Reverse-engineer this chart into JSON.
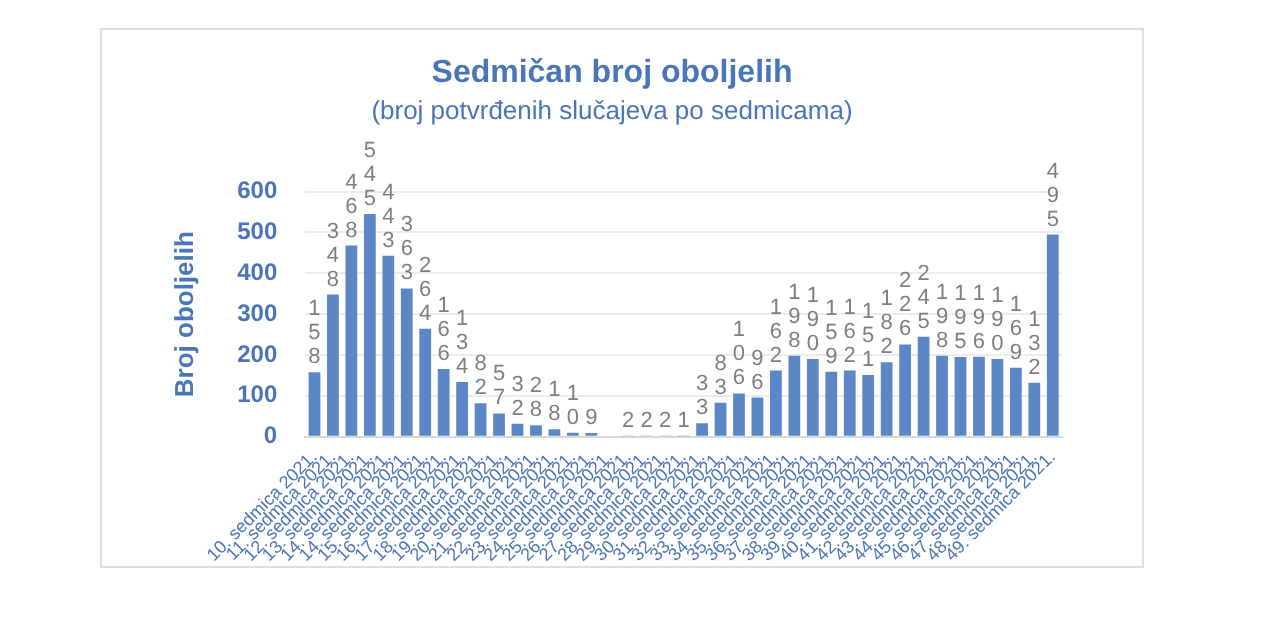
{
  "chart_data": {
    "type": "bar",
    "title": "Sedmičan broj oboljelih",
    "subtitle": "(broj potvrđenih slučajeva po sedmicama)",
    "ylabel": "Broj oboljelih",
    "categories": [
      "10. sedmica 2021.",
      "11. sedmica 2021.",
      "12. sedmica 2021.",
      "13. sedmica 2021.",
      "14. sedmica 2021.",
      "14. sedmica 2021.",
      "15. sedmica 2021.",
      "16. sedmica 2021.",
      "17. sedmica 2021.",
      "18. sedmica 2021.",
      "19. sedmica 2021.",
      "20. sedmica 2021.",
      "21. sedmica 2021.",
      "22. sedmica 2021.",
      "23. sedmica 2021.",
      "24. sedmica 2021.",
      "25. sedmica 2021.",
      "26. sedmica 2021.",
      "27. sedmica 2021.",
      "28. sedmica 2021.",
      "29. sedmica 2021.",
      "30. sedmica 2021.",
      "31. sedmica 2021.",
      "32. sedmica 2021.",
      "33. sedmica 2021.",
      "34. sedmica 2021.",
      "35. sedmica 2021.",
      "36. sedmica 2021.",
      "37. sedmica 2021.",
      "38. sedmica 2021.",
      "39. sedmica 2021.",
      "40. sedmica 2021.",
      "41. sedmica 2021.",
      "42. sedmica 2021.",
      "43. sedmica 2021.",
      "44. sedmica 2021.",
      "45. sedmica 2021.",
      "46. sedmica 2021.",
      "47. sedmica 2021.",
      "48. sedmica 2021.",
      "49. sedmica 2021."
    ],
    "values": [
      158,
      348,
      468,
      545,
      443,
      363,
      264,
      166,
      134,
      82,
      57,
      32,
      28,
      18,
      10,
      9,
      null,
      2,
      2,
      2,
      1,
      33,
      83,
      106,
      96,
      162,
      198,
      190,
      159,
      162,
      151,
      182,
      226,
      245,
      198,
      195,
      196,
      190,
      169,
      132,
      495
    ],
    "color": "#5b87c7",
    "ylim": [
      0,
      600
    ],
    "yticks": [
      0,
      100,
      200,
      300,
      400,
      500,
      600
    ],
    "grid": "y",
    "data_labels": true
  }
}
